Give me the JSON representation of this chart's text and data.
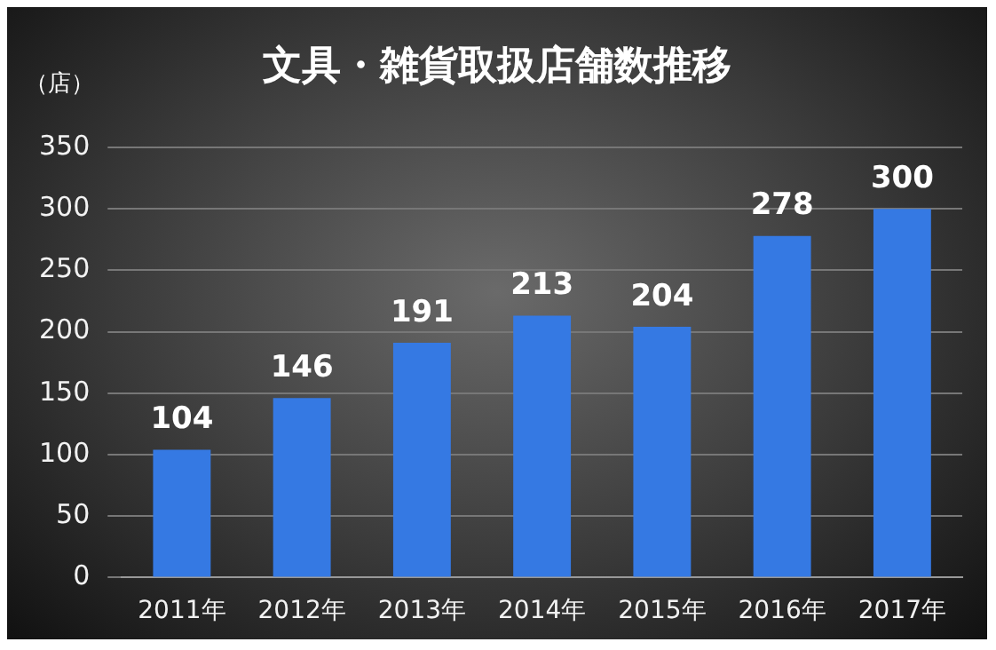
{
  "chart_data": {
    "type": "bar",
    "title": "文具・雑貨取扱店舗数推移",
    "ylabel": "（店）",
    "categories": [
      "2011年",
      "2012年",
      "2013年",
      "2014年",
      "2015年",
      "2016年",
      "2017年"
    ],
    "values": [
      104,
      146,
      191,
      213,
      204,
      278,
      300
    ],
    "color": "#3579e3",
    "ylim": [
      0,
      350
    ],
    "yticks": [
      0,
      50,
      100,
      150,
      200,
      250,
      300,
      350
    ],
    "grid": "y",
    "data_labels": true,
    "legend": false
  }
}
